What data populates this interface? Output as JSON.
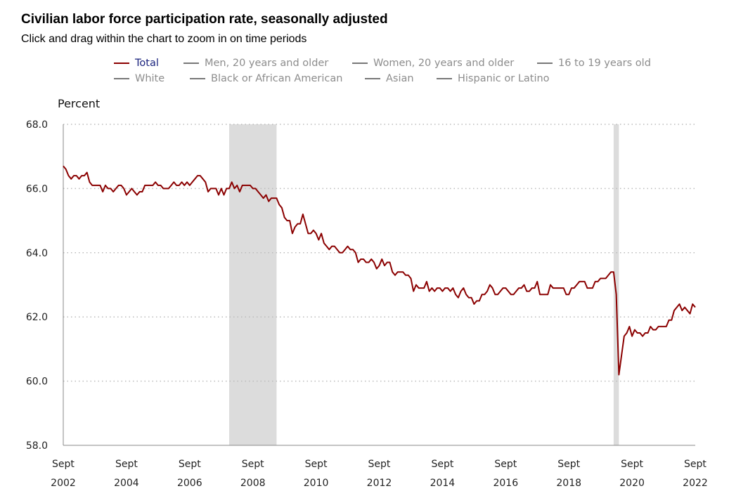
{
  "header": {
    "title": "Civilian labor force participation rate, seasonally adjusted",
    "subtitle": "Click and drag within the chart to zoom in on time periods"
  },
  "legend": {
    "items": [
      {
        "label": "Total",
        "active": true
      },
      {
        "label": "Men, 20 years and older",
        "active": false
      },
      {
        "label": "Women, 20 years and older",
        "active": false
      },
      {
        "label": "16 to 19 years old",
        "active": false
      },
      {
        "label": "White",
        "active": false
      },
      {
        "label": "Black or African American",
        "active": false
      },
      {
        "label": "Asian",
        "active": false
      },
      {
        "label": "Hispanic or Latino",
        "active": false
      }
    ]
  },
  "colors": {
    "total_line": "#8b0000",
    "inactive_legend": "#777777",
    "recession_band": "#dcdcdc",
    "grid": "#bbbbbb"
  },
  "chart_data": {
    "type": "line",
    "title": "Civilian labor force participation rate, seasonally adjusted",
    "ylabel": "Percent",
    "xlabel": "",
    "ylim": [
      58.0,
      68.0
    ],
    "xlim": [
      "2002-09",
      "2022-09"
    ],
    "y_ticks": [
      "58.0",
      "60.0",
      "62.0",
      "64.0",
      "66.0",
      "68.0"
    ],
    "x_ticks": [
      {
        "month": "Sept",
        "year": "2002"
      },
      {
        "month": "Sept",
        "year": "2004"
      },
      {
        "month": "Sept",
        "year": "2006"
      },
      {
        "month": "Sept",
        "year": "2008"
      },
      {
        "month": "Sept",
        "year": "2010"
      },
      {
        "month": "Sept",
        "year": "2012"
      },
      {
        "month": "Sept",
        "year": "2014"
      },
      {
        "month": "Sept",
        "year": "2016"
      },
      {
        "month": "Sept",
        "year": "2018"
      },
      {
        "month": "Sept",
        "year": "2020"
      },
      {
        "month": "Sept",
        "year": "2022"
      }
    ],
    "grid": "horizontal-dotted",
    "legend_position": "top",
    "recessions": [
      {
        "start": "2007-12",
        "end": "2009-06"
      },
      {
        "start": "2020-02",
        "end": "2020-04"
      }
    ],
    "series": [
      {
        "name": "Total",
        "points": [
          [
            "2002-09",
            66.7
          ],
          [
            "2002-10",
            66.6
          ],
          [
            "2002-11",
            66.4
          ],
          [
            "2002-12",
            66.3
          ],
          [
            "2003-01",
            66.4
          ],
          [
            "2003-02",
            66.4
          ],
          [
            "2003-03",
            66.3
          ],
          [
            "2003-04",
            66.4
          ],
          [
            "2003-05",
            66.4
          ],
          [
            "2003-06",
            66.5
          ],
          [
            "2003-07",
            66.2
          ],
          [
            "2003-08",
            66.1
          ],
          [
            "2003-09",
            66.1
          ],
          [
            "2003-10",
            66.1
          ],
          [
            "2003-11",
            66.1
          ],
          [
            "2003-12",
            65.9
          ],
          [
            "2004-01",
            66.1
          ],
          [
            "2004-02",
            66.0
          ],
          [
            "2004-03",
            66.0
          ],
          [
            "2004-04",
            65.9
          ],
          [
            "2004-05",
            66.0
          ],
          [
            "2004-06",
            66.1
          ],
          [
            "2004-07",
            66.1
          ],
          [
            "2004-08",
            66.0
          ],
          [
            "2004-09",
            65.8
          ],
          [
            "2004-10",
            65.9
          ],
          [
            "2004-11",
            66.0
          ],
          [
            "2004-12",
            65.9
          ],
          [
            "2005-01",
            65.8
          ],
          [
            "2005-02",
            65.9
          ],
          [
            "2005-03",
            65.9
          ],
          [
            "2005-04",
            66.1
          ],
          [
            "2005-05",
            66.1
          ],
          [
            "2005-06",
            66.1
          ],
          [
            "2005-07",
            66.1
          ],
          [
            "2005-08",
            66.2
          ],
          [
            "2005-09",
            66.1
          ],
          [
            "2005-10",
            66.1
          ],
          [
            "2005-11",
            66.0
          ],
          [
            "2005-12",
            66.0
          ],
          [
            "2006-01",
            66.0
          ],
          [
            "2006-02",
            66.1
          ],
          [
            "2006-03",
            66.2
          ],
          [
            "2006-04",
            66.1
          ],
          [
            "2006-05",
            66.1
          ],
          [
            "2006-06",
            66.2
          ],
          [
            "2006-07",
            66.1
          ],
          [
            "2006-08",
            66.2
          ],
          [
            "2006-09",
            66.1
          ],
          [
            "2006-10",
            66.2
          ],
          [
            "2006-11",
            66.3
          ],
          [
            "2006-12",
            66.4
          ],
          [
            "2007-01",
            66.4
          ],
          [
            "2007-02",
            66.3
          ],
          [
            "2007-03",
            66.2
          ],
          [
            "2007-04",
            65.9
          ],
          [
            "2007-05",
            66.0
          ],
          [
            "2007-06",
            66.0
          ],
          [
            "2007-07",
            66.0
          ],
          [
            "2007-08",
            65.8
          ],
          [
            "2007-09",
            66.0
          ],
          [
            "2007-10",
            65.8
          ],
          [
            "2007-11",
            66.0
          ],
          [
            "2007-12",
            66.0
          ],
          [
            "2008-01",
            66.2
          ],
          [
            "2008-02",
            66.0
          ],
          [
            "2008-03",
            66.1
          ],
          [
            "2008-04",
            65.9
          ],
          [
            "2008-05",
            66.1
          ],
          [
            "2008-06",
            66.1
          ],
          [
            "2008-07",
            66.1
          ],
          [
            "2008-08",
            66.1
          ],
          [
            "2008-09",
            66.0
          ],
          [
            "2008-10",
            66.0
          ],
          [
            "2008-11",
            65.9
          ],
          [
            "2008-12",
            65.8
          ],
          [
            "2009-01",
            65.7
          ],
          [
            "2009-02",
            65.8
          ],
          [
            "2009-03",
            65.6
          ],
          [
            "2009-04",
            65.7
          ],
          [
            "2009-05",
            65.7
          ],
          [
            "2009-06",
            65.7
          ],
          [
            "2009-07",
            65.5
          ],
          [
            "2009-08",
            65.4
          ],
          [
            "2009-09",
            65.1
          ],
          [
            "2009-10",
            65.0
          ],
          [
            "2009-11",
            65.0
          ],
          [
            "2009-12",
            64.6
          ],
          [
            "2010-01",
            64.8
          ],
          [
            "2010-02",
            64.9
          ],
          [
            "2010-03",
            64.9
          ],
          [
            "2010-04",
            65.2
          ],
          [
            "2010-05",
            64.9
          ],
          [
            "2010-06",
            64.6
          ],
          [
            "2010-07",
            64.6
          ],
          [
            "2010-08",
            64.7
          ],
          [
            "2010-09",
            64.6
          ],
          [
            "2010-10",
            64.4
          ],
          [
            "2010-11",
            64.6
          ],
          [
            "2010-12",
            64.3
          ],
          [
            "2011-01",
            64.2
          ],
          [
            "2011-02",
            64.1
          ],
          [
            "2011-03",
            64.2
          ],
          [
            "2011-04",
            64.2
          ],
          [
            "2011-05",
            64.1
          ],
          [
            "2011-06",
            64.0
          ],
          [
            "2011-07",
            64.0
          ],
          [
            "2011-08",
            64.1
          ],
          [
            "2011-09",
            64.2
          ],
          [
            "2011-10",
            64.1
          ],
          [
            "2011-11",
            64.1
          ],
          [
            "2011-12",
            64.0
          ],
          [
            "2012-01",
            63.7
          ],
          [
            "2012-02",
            63.8
          ],
          [
            "2012-03",
            63.8
          ],
          [
            "2012-04",
            63.7
          ],
          [
            "2012-05",
            63.7
          ],
          [
            "2012-06",
            63.8
          ],
          [
            "2012-07",
            63.7
          ],
          [
            "2012-08",
            63.5
          ],
          [
            "2012-09",
            63.6
          ],
          [
            "2012-10",
            63.8
          ],
          [
            "2012-11",
            63.6
          ],
          [
            "2012-12",
            63.7
          ],
          [
            "2013-01",
            63.7
          ],
          [
            "2013-02",
            63.4
          ],
          [
            "2013-03",
            63.3
          ],
          [
            "2013-04",
            63.4
          ],
          [
            "2013-05",
            63.4
          ],
          [
            "2013-06",
            63.4
          ],
          [
            "2013-07",
            63.3
          ],
          [
            "2013-08",
            63.3
          ],
          [
            "2013-09",
            63.2
          ],
          [
            "2013-10",
            62.8
          ],
          [
            "2013-11",
            63.0
          ],
          [
            "2013-12",
            62.9
          ],
          [
            "2014-01",
            62.9
          ],
          [
            "2014-02",
            62.9
          ],
          [
            "2014-03",
            63.1
          ],
          [
            "2014-04",
            62.8
          ],
          [
            "2014-05",
            62.9
          ],
          [
            "2014-06",
            62.8
          ],
          [
            "2014-07",
            62.9
          ],
          [
            "2014-08",
            62.9
          ],
          [
            "2014-09",
            62.8
          ],
          [
            "2014-10",
            62.9
          ],
          [
            "2014-11",
            62.9
          ],
          [
            "2014-12",
            62.8
          ],
          [
            "2015-01",
            62.9
          ],
          [
            "2015-02",
            62.7
          ],
          [
            "2015-03",
            62.6
          ],
          [
            "2015-04",
            62.8
          ],
          [
            "2015-05",
            62.9
          ],
          [
            "2015-06",
            62.7
          ],
          [
            "2015-07",
            62.6
          ],
          [
            "2015-08",
            62.6
          ],
          [
            "2015-09",
            62.4
          ],
          [
            "2015-10",
            62.5
          ],
          [
            "2015-11",
            62.5
          ],
          [
            "2015-12",
            62.7
          ],
          [
            "2016-01",
            62.7
          ],
          [
            "2016-02",
            62.8
          ],
          [
            "2016-03",
            63.0
          ],
          [
            "2016-04",
            62.9
          ],
          [
            "2016-05",
            62.7
          ],
          [
            "2016-06",
            62.7
          ],
          [
            "2016-07",
            62.8
          ],
          [
            "2016-08",
            62.9
          ],
          [
            "2016-09",
            62.9
          ],
          [
            "2016-10",
            62.8
          ],
          [
            "2016-11",
            62.7
          ],
          [
            "2016-12",
            62.7
          ],
          [
            "2017-01",
            62.8
          ],
          [
            "2017-02",
            62.9
          ],
          [
            "2017-03",
            62.9
          ],
          [
            "2017-04",
            63.0
          ],
          [
            "2017-05",
            62.8
          ],
          [
            "2017-06",
            62.8
          ],
          [
            "2017-07",
            62.9
          ],
          [
            "2017-08",
            62.9
          ],
          [
            "2017-09",
            63.1
          ],
          [
            "2017-10",
            62.7
          ],
          [
            "2017-11",
            62.7
          ],
          [
            "2017-12",
            62.7
          ],
          [
            "2018-01",
            62.7
          ],
          [
            "2018-02",
            63.0
          ],
          [
            "2018-03",
            62.9
          ],
          [
            "2018-04",
            62.9
          ],
          [
            "2018-05",
            62.9
          ],
          [
            "2018-06",
            62.9
          ],
          [
            "2018-07",
            62.9
          ],
          [
            "2018-08",
            62.7
          ],
          [
            "2018-09",
            62.7
          ],
          [
            "2018-10",
            62.9
          ],
          [
            "2018-11",
            62.9
          ],
          [
            "2018-12",
            63.0
          ],
          [
            "2019-01",
            63.1
          ],
          [
            "2019-02",
            63.1
          ],
          [
            "2019-03",
            63.1
          ],
          [
            "2019-04",
            62.9
          ],
          [
            "2019-05",
            62.9
          ],
          [
            "2019-06",
            62.9
          ],
          [
            "2019-07",
            63.1
          ],
          [
            "2019-08",
            63.1
          ],
          [
            "2019-09",
            63.2
          ],
          [
            "2019-10",
            63.2
          ],
          [
            "2019-11",
            63.2
          ],
          [
            "2019-12",
            63.3
          ],
          [
            "2020-01",
            63.4
          ],
          [
            "2020-02",
            63.4
          ],
          [
            "2020-03",
            62.7
          ],
          [
            "2020-04",
            60.2
          ],
          [
            "2020-05",
            60.8
          ],
          [
            "2020-06",
            61.4
          ],
          [
            "2020-07",
            61.5
          ],
          [
            "2020-08",
            61.7
          ],
          [
            "2020-09",
            61.4
          ],
          [
            "2020-10",
            61.6
          ],
          [
            "2020-11",
            61.5
          ],
          [
            "2020-12",
            61.5
          ],
          [
            "2021-01",
            61.4
          ],
          [
            "2021-02",
            61.5
          ],
          [
            "2021-03",
            61.5
          ],
          [
            "2021-04",
            61.7
          ],
          [
            "2021-05",
            61.6
          ],
          [
            "2021-06",
            61.6
          ],
          [
            "2021-07",
            61.7
          ],
          [
            "2021-08",
            61.7
          ],
          [
            "2021-09",
            61.7
          ],
          [
            "2021-10",
            61.7
          ],
          [
            "2021-11",
            61.9
          ],
          [
            "2021-12",
            61.9
          ],
          [
            "2022-01",
            62.2
          ],
          [
            "2022-02",
            62.3
          ],
          [
            "2022-03",
            62.4
          ],
          [
            "2022-04",
            62.2
          ],
          [
            "2022-05",
            62.3
          ],
          [
            "2022-06",
            62.2
          ],
          [
            "2022-07",
            62.1
          ],
          [
            "2022-08",
            62.4
          ],
          [
            "2022-09",
            62.3
          ]
        ]
      }
    ]
  }
}
